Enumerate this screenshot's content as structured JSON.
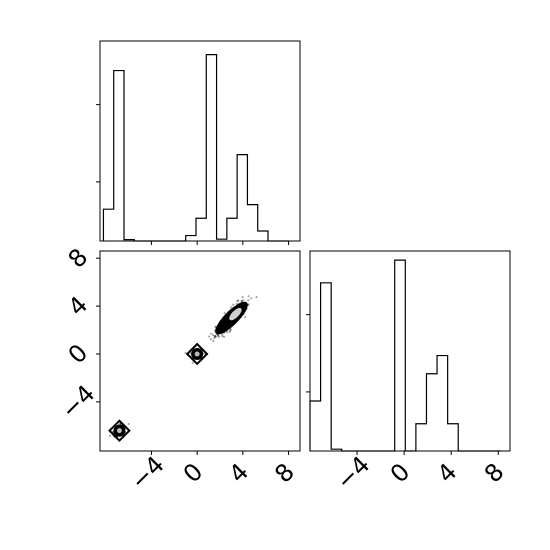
{
  "chart_data": [
    {
      "panel": "marginal-x1",
      "type": "histogram",
      "xlim": [
        -8.5,
        9
      ],
      "ylim": [
        0,
        0.44
      ],
      "bin_edges": [
        -8.2,
        -7.3,
        -6.4,
        -5.5,
        -4.6,
        -3.7,
        -2.8,
        -1.9,
        -1.0,
        -0.1,
        0.8,
        1.7,
        2.6,
        3.5,
        4.4,
        5.3,
        6.2,
        7.1,
        8.0
      ],
      "values": [
        0.07,
        0.375,
        0.003,
        0,
        0,
        0,
        0,
        0,
        0.012,
        0.05,
        0.41,
        0.004,
        0.05,
        0.19,
        0.08,
        0.022,
        0,
        0
      ],
      "yticks": [
        0.13,
        0.3
      ],
      "xticks": [
        -4,
        0,
        4,
        8
      ],
      "xticklabels": [],
      "title": "",
      "xlabel": "",
      "ylabel": ""
    },
    {
      "panel": "joint-x1-x2",
      "type": "scatter",
      "xlim": [
        -8.5,
        9
      ],
      "ylim": [
        -8.1,
        8.6
      ],
      "clusters": [
        {
          "center": [
            -6.8,
            -6.4
          ],
          "spread": 0.35,
          "orientation_deg": 45
        },
        {
          "center": [
            0,
            0
          ],
          "spread": 0.25,
          "orientation_deg": 0
        },
        {
          "center": [
            3.0,
            3.0
          ],
          "spread": 1.0,
          "orientation_deg": 45
        }
      ],
      "xticks": [
        -4,
        0,
        4,
        8
      ],
      "xticklabels": [
        "−4",
        "0",
        "4",
        "8"
      ],
      "yticks": [
        -4,
        0,
        4,
        8
      ],
      "yticklabels": [
        "−4",
        "0",
        "4",
        "8"
      ],
      "title": "",
      "xlabel": "",
      "ylabel": ""
    },
    {
      "panel": "marginal-x2",
      "type": "histogram",
      "xlim": [
        -8.0,
        9.0
      ],
      "ylim": [
        0,
        0.44
      ],
      "bin_edges": [
        -8.0,
        -7.1,
        -6.2,
        -5.3,
        -4.4,
        -3.5,
        -2.6,
        -1.7,
        -0.8,
        0.1,
        1.0,
        1.9,
        2.8,
        3.7,
        4.6,
        5.5,
        6.4,
        7.3,
        8.2
      ],
      "values": [
        0.11,
        0.37,
        0.004,
        0,
        0,
        0,
        0,
        0,
        0.42,
        0,
        0.06,
        0.17,
        0.21,
        0.06,
        0,
        0,
        0,
        0
      ],
      "yticks": [
        0.13,
        0.3
      ],
      "xticks": [
        -4,
        0,
        4,
        8
      ],
      "xticklabels": [
        "−4",
        "0",
        "4",
        "8"
      ],
      "title": "",
      "xlabel": "",
      "ylabel": ""
    }
  ]
}
